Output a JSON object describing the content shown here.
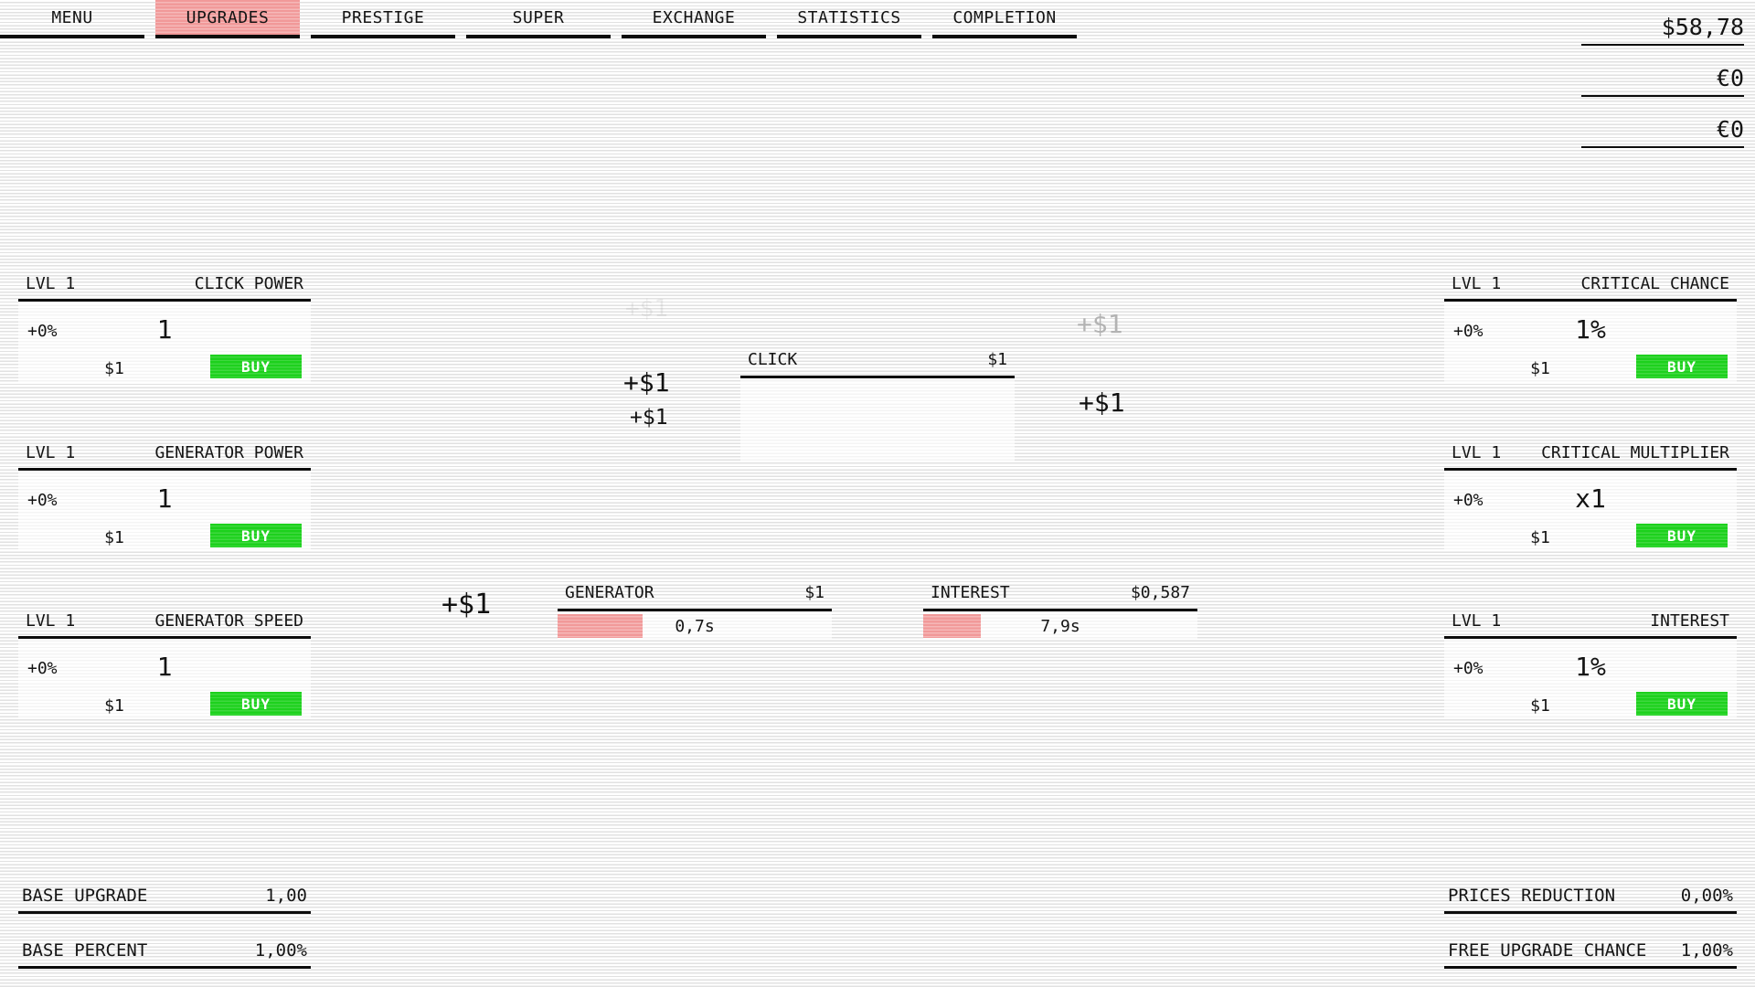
{
  "colors": {
    "accent_pink": "#f19999",
    "buy_green": "#1dd11d",
    "line_black": "#0c0c0c",
    "scanline_gray": "#e1e1e1"
  },
  "tabs": [
    {
      "label": "MENU",
      "active": false
    },
    {
      "label": "UPGRADES",
      "active": true
    },
    {
      "label": "PRESTIGE",
      "active": false
    },
    {
      "label": "SUPER",
      "active": false
    },
    {
      "label": "EXCHANGE",
      "active": false
    },
    {
      "label": "STATISTICS",
      "active": false
    },
    {
      "label": "COMPLETION",
      "active": false
    }
  ],
  "currency_panel": {
    "rows": [
      "$58,78",
      "€0",
      "€0"
    ]
  },
  "upgrade_cards": [
    {
      "level": "LVL 1",
      "name": "CLICK POWER",
      "bonus": "+0%",
      "value": "1",
      "price": "$1",
      "buy_label": "BUY"
    },
    {
      "level": "LVL 1",
      "name": "GENERATOR POWER",
      "bonus": "+0%",
      "value": "1",
      "price": "$1",
      "buy_label": "BUY"
    },
    {
      "level": "LVL 1",
      "name": "GENERATOR SPEED",
      "bonus": "+0%",
      "value": "1",
      "price": "$1",
      "buy_label": "BUY"
    },
    {
      "level": "LVL 1",
      "name": "CRITICAL CHANCE",
      "bonus": "+0%",
      "value": "1%",
      "price": "$1",
      "buy_label": "BUY"
    },
    {
      "level": "LVL 1",
      "name": "CRITICAL MULTIPLIER",
      "bonus": "+0%",
      "value": "x1",
      "price": "$1",
      "buy_label": "BUY"
    },
    {
      "level": "LVL 1",
      "name": "INTEREST",
      "bonus": "+0%",
      "value": "1%",
      "price": "$1",
      "buy_label": "BUY"
    }
  ],
  "click_panel": {
    "label": "CLICK",
    "price": "$1"
  },
  "generator_panel": {
    "label": "GENERATOR",
    "price": "$1",
    "timer": "0,7s",
    "progress_pct": 31
  },
  "interest_panel": {
    "label": "INTEREST",
    "price": "$0,587",
    "timer": "7,9s",
    "progress_pct": 21
  },
  "floating_texts": [
    {
      "text": "+$1"
    },
    {
      "text": "+$1"
    },
    {
      "text": "+$1"
    },
    {
      "text": "+$1"
    },
    {
      "text": "+$1"
    },
    {
      "text": "+$1"
    }
  ],
  "bottom_stats": {
    "left": [
      {
        "label": "BASE UPGRADE",
        "value": "1,00"
      },
      {
        "label": "BASE PERCENT",
        "value": "1,00%"
      }
    ],
    "right": [
      {
        "label": "PRICES REDUCTION",
        "value": "0,00%"
      },
      {
        "label": "FREE UPGRADE CHANCE",
        "value": "1,00%"
      }
    ]
  }
}
